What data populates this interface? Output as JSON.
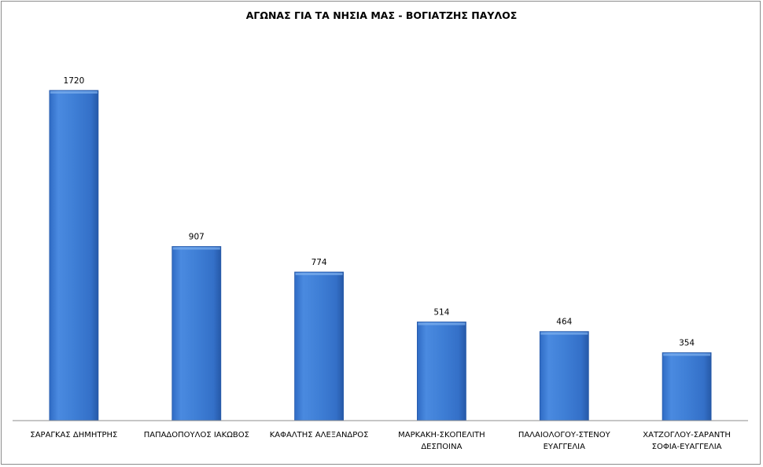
{
  "chart_data": {
    "type": "bar",
    "title": "ΑΓΩΝΑΣ ΓΙΑ ΤΑ ΝΗΣΙΑ ΜΑΣ - ΒΟΓΙΑΤΖΗΣ ΠΑΥΛΟΣ",
    "categories": [
      "ΣΑΡΑΓΚΑΣ ΔΗΜΗΤΡΗΣ",
      "ΠΑΠΑΔΟΠΟΥΛΟΣ ΙΑΚΩΒΟΣ",
      "ΚΑΦΑΛΤΗΣ ΑΛΕΞΑΝΔΡΟΣ",
      "ΜΑΡΚΑΚΗ-ΣΚΟΠΕΛΙΤΗ ΔΕΣΠΟΙΝΑ",
      "ΠΑΛΑΙΟΛΟΓΟΥ-ΣΤΕΝΟΥ ΕΥΑΓΓΕΛΙΑ",
      "ΧΑΤΖΟΓΛΟΥ-ΣΑΡΑΝΤΗ ΣΟΦΙΑ-ΕΥΑΓΓΕΛΙΑ"
    ],
    "values": [
      1720,
      907,
      774,
      514,
      464,
      354
    ],
    "value_labels": [
      "1720",
      "907",
      "774",
      "514",
      "464",
      "354"
    ],
    "ylim": [
      0,
      2000
    ],
    "grid": false,
    "legend": "none",
    "bar_color": "#3f7fd6",
    "bar_color_dark": "#2659a8"
  }
}
